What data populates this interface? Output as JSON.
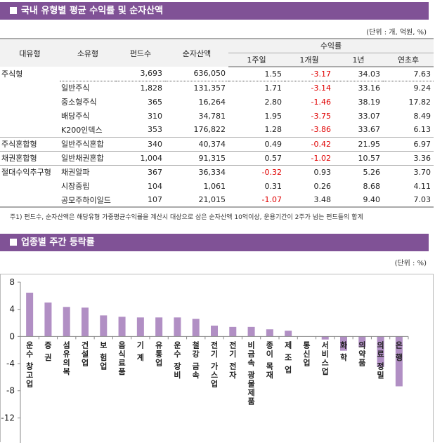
{
  "section1": {
    "title": "국내 유형별 평균 수익률 및 순자산액",
    "unit": "(단위 : 개, 억원, %)"
  },
  "table": {
    "headers": {
      "major": "대유형",
      "minor": "소유형",
      "funds": "펀드수",
      "assets": "순자산액",
      "returns": "수익률",
      "w1": "1주일",
      "m1": "1개월",
      "y1": "1년",
      "ytd": "연초후"
    },
    "rows": [
      {
        "major": "주식형",
        "minor": "",
        "funds": "3,693",
        "assets": "636,050",
        "w1": "1.55",
        "m1": "-3.17",
        "y1": "34.03",
        "ytd": "7.63"
      },
      {
        "major": "",
        "minor": "일반주식",
        "funds": "1,828",
        "assets": "131,357",
        "w1": "1.71",
        "m1": "-3.14",
        "y1": "33.16",
        "ytd": "9.24"
      },
      {
        "major": "",
        "minor": "중소형주식",
        "funds": "365",
        "assets": "16,264",
        "w1": "2.80",
        "m1": "-1.46",
        "y1": "38.19",
        "ytd": "17.82"
      },
      {
        "major": "",
        "minor": "배당주식",
        "funds": "310",
        "assets": "34,781",
        "w1": "1.95",
        "m1": "-3.75",
        "y1": "33.07",
        "ytd": "8.49"
      },
      {
        "major": "",
        "minor": "K200인덱스",
        "funds": "353",
        "assets": "176,822",
        "w1": "1.28",
        "m1": "-3.86",
        "y1": "33.67",
        "ytd": "6.13"
      },
      {
        "major": "주식혼합형",
        "minor": "일반주식혼합",
        "funds": "340",
        "assets": "40,374",
        "w1": "0.49",
        "m1": "-0.42",
        "y1": "21.95",
        "ytd": "6.97"
      },
      {
        "major": "채권혼합형",
        "minor": "일반채권혼합",
        "funds": "1,004",
        "assets": "91,315",
        "w1": "0.57",
        "m1": "-1.02",
        "y1": "10.57",
        "ytd": "3.36"
      },
      {
        "major": "절대수익추구형",
        "minor": "채권알파",
        "funds": "367",
        "assets": "36,334",
        "w1": "-0.32",
        "m1": "0.93",
        "y1": "5.26",
        "ytd": "3.70"
      },
      {
        "major": "",
        "minor": "시장중립",
        "funds": "104",
        "assets": "1,061",
        "w1": "0.31",
        "m1": "0.26",
        "y1": "8.68",
        "ytd": "4.11"
      },
      {
        "major": "",
        "minor": "공모주하이일드",
        "funds": "107",
        "assets": "21,015",
        "w1": "-1.07",
        "m1": "3.48",
        "y1": "9.40",
        "ytd": "7.03"
      }
    ],
    "note": "주1) 펀드수, 순자산액은 해당유형 가중평균수익률을 계산시 대상으로 삼은 순자산액 10억이상, 운용기간이 2주가 넘는 펀드들의 합계"
  },
  "colors": {
    "header": "#805296",
    "bar": "#b18fc4",
    "negative": "#e00000"
  },
  "section2": {
    "title": "업종별 주간 등락률",
    "unit": "(단위 : %)"
  },
  "chart_data": {
    "type": "bar",
    "categories": [
      "운수창고업",
      "증권",
      "섬유의복",
      "건설업",
      "보험업",
      "음식료품",
      "기계",
      "유통업",
      "운수장비",
      "철강금속",
      "전기가스업",
      "전기전자",
      "비금속광물제품",
      "종이목재",
      "제조업",
      "통신업",
      "서비스업",
      "화학",
      "의약품",
      "의료정밀",
      "은행"
    ],
    "labels": [
      "운수 창고업",
      "증 권",
      "섬유의복",
      "건설업",
      "보 험업",
      "음식료품",
      "기 계",
      "유통업",
      "운수 장비",
      "철강 금속",
      "전기 가스업",
      "전기 전자",
      "비금속 광물제품",
      "종이 목재",
      "제 조 업",
      "통신업",
      "서비스업",
      "화 학",
      "의약품",
      "의료 정밀",
      "은 행"
    ],
    "values": [
      6.45,
      5.0,
      4.35,
      4.25,
      3.1,
      2.9,
      2.8,
      2.8,
      2.8,
      2.6,
      1.6,
      1.4,
      1.4,
      1.05,
      0.85,
      0.0,
      -0.45,
      -2.1,
      -1.55,
      -4.5,
      -7.35
    ],
    "yticks": [
      "8",
      "4",
      "0",
      "-4",
      "-8",
      "-12"
    ],
    "ylim": [
      -12,
      8
    ]
  }
}
